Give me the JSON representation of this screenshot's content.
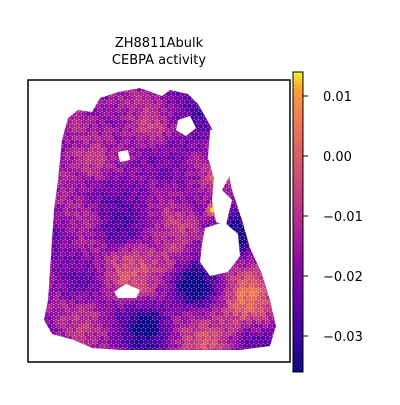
{
  "chart_data": {
    "type": "heatmap",
    "title_line1": "ZH8811Abulk",
    "title_line2": "CEBPA activity",
    "xlabel": "",
    "ylabel": "",
    "colormap": "plasma",
    "colorbar": {
      "range": [
        -0.036,
        0.014
      ],
      "ticks": [
        0.01,
        0.0,
        -0.01,
        -0.02,
        -0.03
      ],
      "tick_labels": [
        "0.01",
        "0.00",
        "−0.01",
        "−0.02",
        "−0.03"
      ]
    },
    "spot_values": {
      "description_of_distribution": "mostly between -0.03 and -0.005; bright yellow patches near 0.01 on right edge",
      "typical_min": -0.034,
      "typical_max": 0.012
    },
    "grid": false,
    "axes_ticks": false
  }
}
